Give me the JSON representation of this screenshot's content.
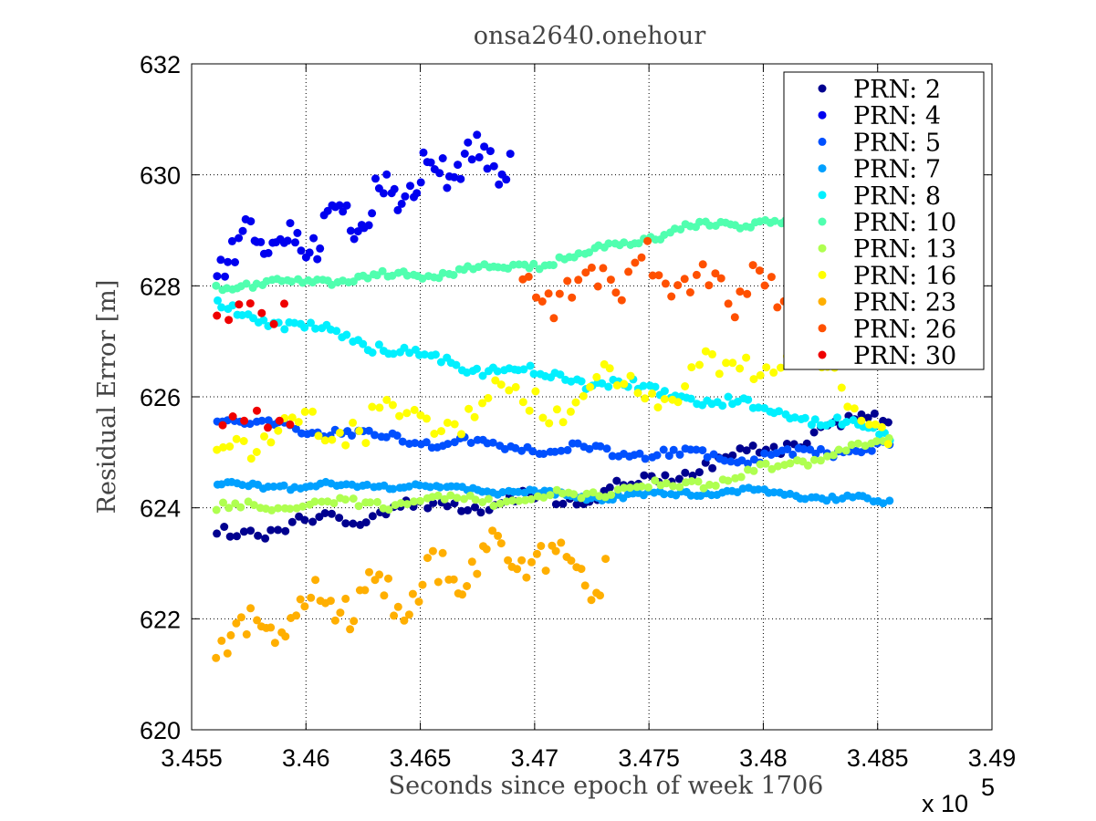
{
  "chart_data": {
    "type": "scatter",
    "title": "onsa2640.onehour",
    "xlabel": "Seconds since epoch of week 1706",
    "ylabel": "Residual Error [m]",
    "x_multiplier_label": "x 10",
    "x_multiplier_exp": "5",
    "xlim": [
      3.455,
      3.49
    ],
    "ylim": [
      620,
      632
    ],
    "x_ticks": [
      3.455,
      3.46,
      3.465,
      3.47,
      3.475,
      3.48,
      3.485,
      3.49
    ],
    "x_tick_labels": [
      "3.455",
      "3.46",
      "3.465",
      "3.47",
      "3.475",
      "3.48",
      "3.485",
      "3.49"
    ],
    "y_ticks": [
      620,
      622,
      624,
      626,
      628,
      630,
      632
    ],
    "y_tick_labels": [
      "620",
      "622",
      "624",
      "626",
      "628",
      "630",
      "632"
    ],
    "grid": true,
    "legend_position": "top-right",
    "series": [
      {
        "name": "PRN: 2",
        "color": "#00008f",
        "x_start": 3.4561,
        "x_end": 3.4855,
        "n": 100,
        "points_y": [
          [
            0,
            623.5
          ],
          [
            0.3,
            624.0
          ],
          [
            0.55,
            624.2
          ],
          [
            0.8,
            625.0
          ],
          [
            1.0,
            625.7
          ]
        ],
        "noise": 0.15,
        "seed": 2
      },
      {
        "name": "PRN: 4",
        "color": "#0000ef",
        "x_start": 3.4561,
        "x_end": 3.4689,
        "n": 80,
        "points_y": [
          [
            0,
            628.6
          ],
          [
            0.25,
            628.8
          ],
          [
            0.5,
            629.4
          ],
          [
            0.75,
            630.2
          ],
          [
            1.0,
            630.3
          ]
        ],
        "noise": 0.45,
        "seed": 4
      },
      {
        "name": "PRN: 5",
        "color": "#0050ff",
        "x_start": 3.4561,
        "x_end": 3.4855,
        "n": 120,
        "points_y": [
          [
            0,
            625.6
          ],
          [
            0.3,
            625.2
          ],
          [
            0.6,
            625.0
          ],
          [
            0.8,
            624.9
          ],
          [
            1.0,
            625.1
          ]
        ],
        "noise": 0.1,
        "seed": 5
      },
      {
        "name": "PRN: 7",
        "color": "#00a0ff",
        "x_start": 3.4561,
        "x_end": 3.4855,
        "n": 130,
        "points_y": [
          [
            0,
            624.4
          ],
          [
            0.3,
            624.4
          ],
          [
            0.55,
            624.2
          ],
          [
            0.8,
            624.3
          ],
          [
            1.0,
            624.1
          ]
        ],
        "noise": 0.06,
        "seed": 7
      },
      {
        "name": "PRN: 8",
        "color": "#00f0ff",
        "x_start": 3.4561,
        "x_end": 3.4855,
        "n": 130,
        "points_y": [
          [
            0,
            627.6
          ],
          [
            0.15,
            627.2
          ],
          [
            0.35,
            626.6
          ],
          [
            0.6,
            626.2
          ],
          [
            0.8,
            625.8
          ],
          [
            1.0,
            625.3
          ]
        ],
        "noise": 0.12,
        "seed": 8
      },
      {
        "name": "PRN: 10",
        "color": "#50ffaf",
        "x_start": 3.4561,
        "x_end": 3.4845,
        "n": 130,
        "points_y": [
          [
            0,
            628.0
          ],
          [
            0.3,
            628.2
          ],
          [
            0.5,
            628.4
          ],
          [
            0.75,
            629.1
          ],
          [
            1.0,
            629.2
          ]
        ],
        "noise": 0.08,
        "seed": 10
      },
      {
        "name": "PRN: 13",
        "color": "#afff50",
        "x_start": 3.4561,
        "x_end": 3.4855,
        "n": 110,
        "points_y": [
          [
            0,
            624.0
          ],
          [
            0.3,
            624.1
          ],
          [
            0.5,
            624.2
          ],
          [
            0.75,
            624.5
          ],
          [
            1.0,
            625.2
          ]
        ],
        "noise": 0.1,
        "seed": 13
      },
      {
        "name": "PRN: 16",
        "color": "#ffff00",
        "x_start": 3.4561,
        "x_end": 3.4855,
        "n": 100,
        "points_y": [
          [
            0,
            625.2
          ],
          [
            0.3,
            625.6
          ],
          [
            0.5,
            626.0
          ],
          [
            0.7,
            626.2
          ],
          [
            0.85,
            626.9
          ],
          [
            1.0,
            625.4
          ]
        ],
        "noise": 0.4,
        "seed": 16
      },
      {
        "name": "PRN: 23",
        "color": "#ffaf00",
        "x_start": 3.4561,
        "x_end": 3.4731,
        "n": 80,
        "points_y": [
          [
            0,
            621.6
          ],
          [
            0.3,
            622.3
          ],
          [
            0.5,
            622.5
          ],
          [
            0.75,
            623.2
          ],
          [
            1.0,
            622.8
          ]
        ],
        "noise": 0.45,
        "seed": 23
      },
      {
        "name": "PRN: 26",
        "color": "#ff5000",
        "x_start": 3.4695,
        "x_end": 3.4855,
        "n": 60,
        "points_y": [
          [
            0,
            627.8
          ],
          [
            0.3,
            628.3
          ],
          [
            0.5,
            628.0
          ],
          [
            0.75,
            627.9
          ],
          [
            1.0,
            627.5
          ]
        ],
        "noise": 0.45,
        "seed": 26
      },
      {
        "name": "PRN: 30",
        "color": "#ef0000",
        "x_start": 3.4561,
        "x_end": 3.4593,
        "n": 14,
        "clusters": [
          627.5,
          625.6
        ],
        "noise": 0.2,
        "seed": 30
      }
    ]
  }
}
